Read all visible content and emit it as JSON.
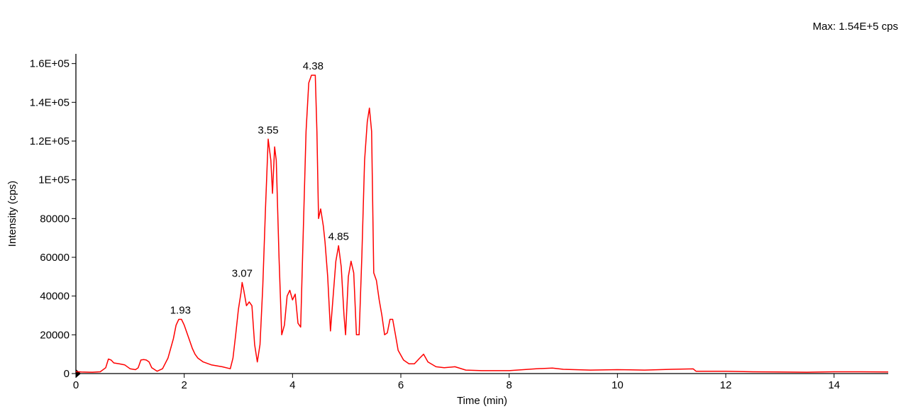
{
  "header": {
    "max_label": "Max: 1.54E+5 cps"
  },
  "chart_data": {
    "type": "line",
    "title": "",
    "xlabel": "Time (min)",
    "ylabel": "Intensity (cps)",
    "xlim": [
      0,
      15
    ],
    "ylim": [
      0,
      165000
    ],
    "grid": false,
    "x_ticks": [
      0,
      2,
      4,
      6,
      8,
      10,
      12,
      14
    ],
    "x_tick_labels": [
      "0",
      "2",
      "4",
      "6",
      "8",
      "10",
      "12",
      "14"
    ],
    "y_ticks": [
      0,
      20000,
      40000,
      60000,
      80000,
      100000,
      120000,
      140000,
      160000
    ],
    "y_tick_labels": [
      "0",
      "20000",
      "40000",
      "60000",
      "80000",
      "1E+05",
      "1.2E+05",
      "1.4E+05",
      "1.6E+05"
    ],
    "peak_labels": [
      {
        "label": "1.93",
        "x": 1.93,
        "y": 28000
      },
      {
        "label": "3.07",
        "x": 3.07,
        "y": 47000
      },
      {
        "label": "3.55",
        "x": 3.55,
        "y": 121000
      },
      {
        "label": "4.38",
        "x": 4.38,
        "y": 154000
      },
      {
        "label": "4.85",
        "x": 4.85,
        "y": 66000
      }
    ],
    "series": [
      {
        "color": "#ff0000",
        "points": [
          [
            0.0,
            1000
          ],
          [
            0.1,
            800
          ],
          [
            0.3,
            700
          ],
          [
            0.45,
            900
          ],
          [
            0.55,
            3000
          ],
          [
            0.6,
            7500
          ],
          [
            0.65,
            7000
          ],
          [
            0.7,
            5500
          ],
          [
            0.8,
            5000
          ],
          [
            0.9,
            4500
          ],
          [
            1.0,
            2500
          ],
          [
            1.1,
            2000
          ],
          [
            1.15,
            3000
          ],
          [
            1.2,
            7000
          ],
          [
            1.25,
            7200
          ],
          [
            1.3,
            7000
          ],
          [
            1.35,
            6000
          ],
          [
            1.4,
            3000
          ],
          [
            1.5,
            1200
          ],
          [
            1.6,
            2500
          ],
          [
            1.7,
            8000
          ],
          [
            1.75,
            13000
          ],
          [
            1.8,
            18000
          ],
          [
            1.85,
            25000
          ],
          [
            1.9,
            28000
          ],
          [
            1.95,
            28000
          ],
          [
            2.0,
            25000
          ],
          [
            2.05,
            21000
          ],
          [
            2.1,
            17000
          ],
          [
            2.15,
            13000
          ],
          [
            2.2,
            10000
          ],
          [
            2.25,
            8000
          ],
          [
            2.35,
            6000
          ],
          [
            2.5,
            4500
          ],
          [
            2.7,
            3500
          ],
          [
            2.85,
            2500
          ],
          [
            2.9,
            8000
          ],
          [
            2.95,
            20000
          ],
          [
            3.0,
            33000
          ],
          [
            3.05,
            42000
          ],
          [
            3.07,
            47000
          ],
          [
            3.1,
            43000
          ],
          [
            3.15,
            35000
          ],
          [
            3.2,
            37000
          ],
          [
            3.25,
            35000
          ],
          [
            3.3,
            15000
          ],
          [
            3.35,
            6000
          ],
          [
            3.4,
            15000
          ],
          [
            3.45,
            45000
          ],
          [
            3.5,
            85000
          ],
          [
            3.55,
            121000
          ],
          [
            3.6,
            110000
          ],
          [
            3.63,
            93000
          ],
          [
            3.67,
            117000
          ],
          [
            3.7,
            110000
          ],
          [
            3.75,
            60000
          ],
          [
            3.8,
            20000
          ],
          [
            3.85,
            25000
          ],
          [
            3.9,
            40000
          ],
          [
            3.95,
            43000
          ],
          [
            4.0,
            38000
          ],
          [
            4.05,
            41000
          ],
          [
            4.1,
            26000
          ],
          [
            4.15,
            24000
          ],
          [
            4.2,
            75000
          ],
          [
            4.25,
            125000
          ],
          [
            4.3,
            150000
          ],
          [
            4.35,
            154000
          ],
          [
            4.42,
            154000
          ],
          [
            4.45,
            125000
          ],
          [
            4.48,
            80000
          ],
          [
            4.52,
            85000
          ],
          [
            4.57,
            76000
          ],
          [
            4.6,
            68000
          ],
          [
            4.65,
            50000
          ],
          [
            4.7,
            22000
          ],
          [
            4.75,
            40000
          ],
          [
            4.8,
            58000
          ],
          [
            4.85,
            66000
          ],
          [
            4.9,
            55000
          ],
          [
            4.95,
            30000
          ],
          [
            4.98,
            20000
          ],
          [
            5.03,
            50000
          ],
          [
            5.08,
            58000
          ],
          [
            5.13,
            52000
          ],
          [
            5.18,
            20000
          ],
          [
            5.23,
            20000
          ],
          [
            5.28,
            60000
          ],
          [
            5.33,
            110000
          ],
          [
            5.38,
            130000
          ],
          [
            5.42,
            137000
          ],
          [
            5.46,
            125000
          ],
          [
            5.5,
            52000
          ],
          [
            5.55,
            48000
          ],
          [
            5.6,
            38000
          ],
          [
            5.65,
            30000
          ],
          [
            5.7,
            20000
          ],
          [
            5.75,
            21000
          ],
          [
            5.8,
            28000
          ],
          [
            5.85,
            28000
          ],
          [
            5.9,
            20000
          ],
          [
            5.95,
            12000
          ],
          [
            6.05,
            7000
          ],
          [
            6.15,
            5000
          ],
          [
            6.25,
            5000
          ],
          [
            6.35,
            8000
          ],
          [
            6.42,
            10000
          ],
          [
            6.5,
            6000
          ],
          [
            6.65,
            3500
          ],
          [
            6.8,
            3000
          ],
          [
            7.0,
            3500
          ],
          [
            7.2,
            1800
          ],
          [
            7.5,
            1500
          ],
          [
            8.0,
            1500
          ],
          [
            8.5,
            2500
          ],
          [
            8.8,
            2800
          ],
          [
            9.0,
            2200
          ],
          [
            9.5,
            1800
          ],
          [
            10.0,
            2000
          ],
          [
            10.5,
            1800
          ],
          [
            11.0,
            2200
          ],
          [
            11.4,
            2400
          ],
          [
            11.45,
            1200
          ],
          [
            12.0,
            1200
          ],
          [
            12.5,
            900
          ],
          [
            13.0,
            800
          ],
          [
            13.5,
            700
          ],
          [
            14.0,
            900
          ],
          [
            14.5,
            900
          ],
          [
            15.0,
            800
          ]
        ]
      }
    ]
  }
}
